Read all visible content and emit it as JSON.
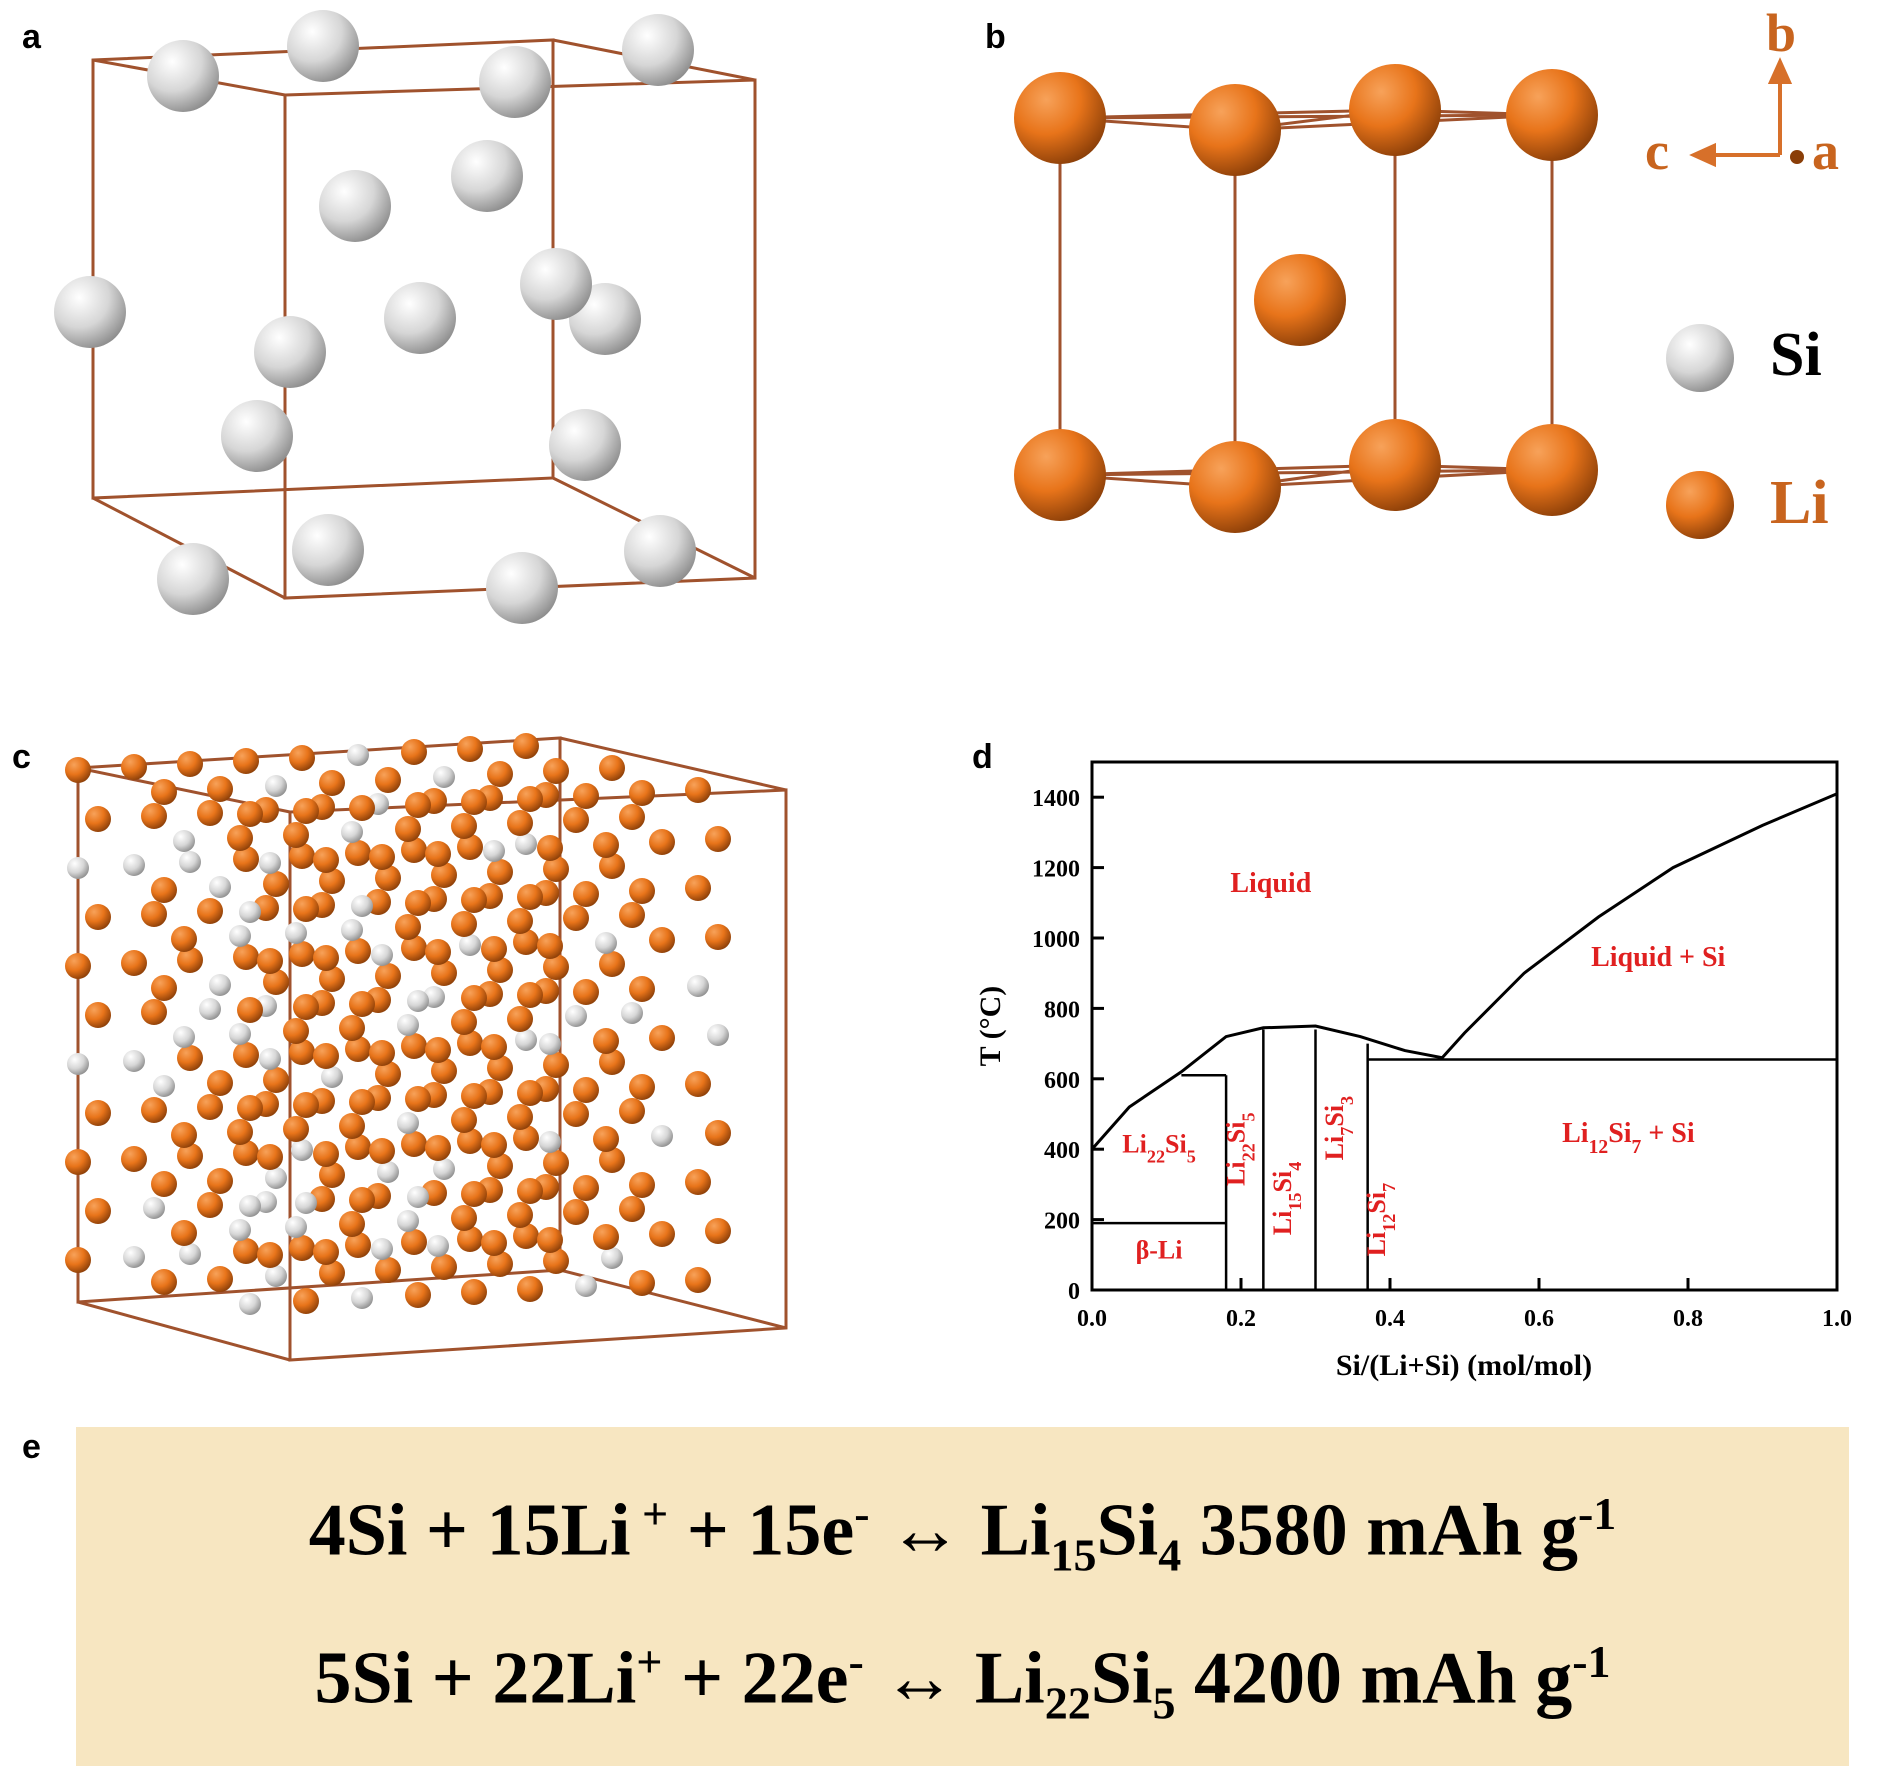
{
  "panels": {
    "a": {
      "letter": "a"
    },
    "b": {
      "letter": "b"
    },
    "c": {
      "letter": "c"
    },
    "d": {
      "letter": "d"
    },
    "e": {
      "letter": "e"
    }
  },
  "axes_triad": {
    "b": "b",
    "c": "c",
    "a": "a"
  },
  "legend": [
    {
      "label": "Si",
      "color": "#d9d9d9"
    },
    {
      "label": "Li",
      "color": "#e8741a"
    }
  ],
  "colors": {
    "frame": "#a0522d",
    "si": "#d9d9d9",
    "li": "#e8741a",
    "label_red": "#e02020",
    "eq_bg": "#f7e6c1",
    "axis_orange": "#c8641e"
  },
  "chart_data": {
    "type": "phase-diagram",
    "xlabel": "Si/(Li+Si) (mol/mol)",
    "ylabel": "T (°C)",
    "xlim": [
      0.0,
      1.0
    ],
    "ylim": [
      0,
      1500
    ],
    "xticks": [
      "0.0",
      "0.2",
      "0.4",
      "0.6",
      "0.8",
      "1.0"
    ],
    "yticks": [
      "0",
      "200",
      "400",
      "600",
      "800",
      "1000",
      "1200",
      "1400"
    ],
    "liquidus": [
      [
        0.0,
        400
      ],
      [
        0.05,
        520
      ],
      [
        0.12,
        620
      ],
      [
        0.18,
        720
      ],
      [
        0.23,
        745
      ],
      [
        0.3,
        750
      ],
      [
        0.36,
        720
      ],
      [
        0.42,
        680
      ],
      [
        0.47,
        660
      ],
      [
        0.5,
        730
      ],
      [
        0.58,
        900
      ],
      [
        0.68,
        1060
      ],
      [
        0.78,
        1200
      ],
      [
        0.9,
        1320
      ],
      [
        1.0,
        1410
      ]
    ],
    "solidus_lines": [
      {
        "x": [
          0.0,
          0.18
        ],
        "y": 190
      },
      {
        "x": [
          0.12,
          0.18
        ],
        "y": 610
      },
      {
        "x": [
          0.37,
          1.0
        ],
        "y": 655
      }
    ],
    "compound_lines": [
      {
        "x": 0.18,
        "ymax": 610
      },
      {
        "x": 0.23,
        "ymax": 740
      },
      {
        "x": 0.3,
        "ymax": 740
      },
      {
        "x": 0.37,
        "ymax": 700
      }
    ],
    "regions": {
      "liquid": "Liquid",
      "liquid_si": "Liquid + Si",
      "li22si5_left": {
        "base": "Li",
        "n1": "22",
        "el2": "Si",
        "n2": "5"
      },
      "beta_li": "β-Li",
      "li22si5_v": {
        "base": "Li",
        "n1": "22",
        "el2": "Si",
        "n2": "5"
      },
      "li15si4_v": {
        "base": "Li",
        "n1": "15",
        "el2": "Si",
        "n2": "4"
      },
      "li7si3_v": {
        "base": "Li",
        "n1": "7",
        "el2": "Si",
        "n2": "3"
      },
      "li12si7_v": {
        "base": "Li",
        "n1": "12",
        "el2": "Si",
        "n2": "7"
      },
      "li12si7_si": {
        "base": "Li",
        "n1": "12",
        "el2": "Si",
        "n2": "7",
        "tail": " + Si"
      }
    }
  },
  "equations": [
    {
      "lhs": "4Si + 15Li",
      "sup1": " +",
      "mid": " + 15e",
      "sup2": "-",
      "arrow": " ↔ ",
      "prod": "Li",
      "s1": "15",
      "prod2": "Si",
      "s2": "4",
      "cap": "  3580 mAh g",
      "sup3": "-1"
    },
    {
      "lhs": "5Si + 22Li",
      "sup1": "+",
      "mid": " + 22e",
      "sup2": "-",
      "arrow": "  ↔ ",
      "prod": "Li",
      "s1": "22",
      "prod2": "Si",
      "s2": "5",
      "cap": "  4200 mAh g",
      "sup3": "-1"
    }
  ]
}
